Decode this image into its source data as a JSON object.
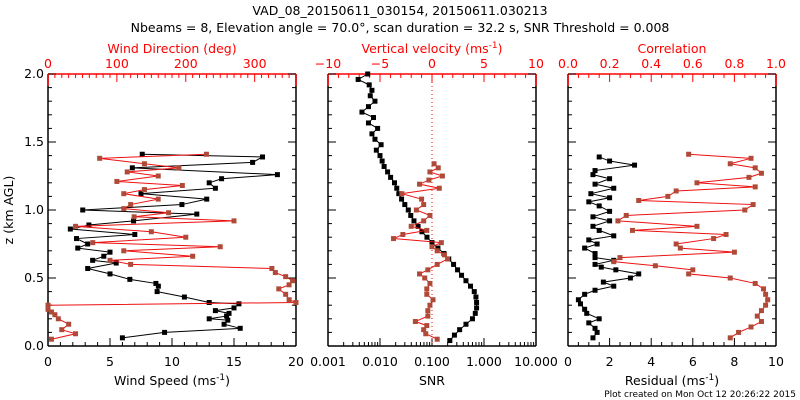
{
  "header": {
    "title_line1": "VAD_08_20150611_030154, 20150611.030213",
    "title_line2": "Nbeams = 8, Elevation angle = 70.0°, scan duration = 32.2 s, SNR Threshold = 0.008"
  },
  "footer": {
    "created": "Plot created on Mon Oct 12 20:26:22 2015"
  },
  "colors": {
    "primary_series": "#000000",
    "secondary_series": "#ee1111",
    "secondary_marker": "#b04a38",
    "axis_top": "#ff0000"
  },
  "chart_data": [
    {
      "type": "line",
      "panel": "left",
      "ylabel": "z (km AGL)",
      "ylim": [
        0,
        2.0
      ],
      "yticks": [
        "0.0",
        "0.5",
        "1.0",
        "1.5",
        "2.0"
      ],
      "xlabel": "Wind Speed (ms",
      "xlabel_sup": "-1",
      "xlabel_close": ")",
      "xlim": [
        0,
        20
      ],
      "xticks": [
        "0",
        "5",
        "10",
        "15",
        "20"
      ],
      "top_xlabel": "Wind Direction (deg)",
      "top_xlim": [
        0,
        360
      ],
      "top_xticks": [
        "0",
        "100",
        "200",
        "300"
      ],
      "series": [
        {
          "name": "Wind Speed",
          "axis": "bottom",
          "z": [
            0.06,
            0.1,
            0.13,
            0.16,
            0.19,
            0.2,
            0.22,
            0.24,
            0.26,
            0.28,
            0.31,
            0.32,
            0.36,
            0.4,
            0.44,
            0.46,
            0.49,
            0.53,
            0.57,
            0.61,
            0.63,
            0.66,
            0.69,
            0.72,
            0.75,
            0.79,
            0.82,
            0.86,
            0.89,
            0.92,
            0.97,
            1.0,
            1.04,
            1.08,
            1.12,
            1.16,
            1.2,
            1.23,
            1.26,
            1.31,
            1.35,
            1.39,
            1.41
          ],
          "values": [
            6.0,
            9.4,
            15.5,
            14.2,
            14.5,
            13.0,
            14.4,
            14.6,
            13.5,
            15.0,
            15.4,
            13.0,
            11.0,
            8.8,
            8.9,
            8.7,
            6.6,
            5.0,
            3.2,
            5.5,
            3.6,
            4.5,
            5.0,
            2.4,
            3.2,
            2.3,
            7.0,
            1.8,
            3.3,
            6.9,
            12.0,
            2.8,
            10.8,
            12.8,
            7.5,
            13.5,
            13.0,
            14.0,
            18.5,
            6.8,
            16.5,
            17.3,
            7.6
          ]
        },
        {
          "name": "Wind Direction",
          "axis": "top",
          "z": [
            0.05,
            0.09,
            0.12,
            0.16,
            0.2,
            0.23,
            0.25,
            0.27,
            0.3,
            0.32,
            0.34,
            0.38,
            0.42,
            0.45,
            0.48,
            0.51,
            0.54,
            0.57,
            0.6,
            0.63,
            0.66,
            0.7,
            0.73,
            0.76,
            0.8,
            0.84,
            0.88,
            0.92,
            0.95,
            0.98,
            1.01,
            1.04,
            1.08,
            1.12,
            1.15,
            1.18,
            1.21,
            1.25,
            1.28,
            1.31,
            1.34,
            1.38,
            1.41
          ],
          "values": [
            5,
            40,
            20,
            30,
            15,
            10,
            5,
            0,
            0,
            360,
            350,
            345,
            335,
            350,
            355,
            345,
            330,
            325,
            120,
            90,
            210,
            110,
            250,
            65,
            200,
            150,
            40,
            270,
            125,
            175,
            110,
            120,
            160,
            110,
            140,
            195,
            100,
            160,
            115,
            190,
            140,
            75,
            230
          ]
        }
      ]
    },
    {
      "type": "line",
      "panel": "middle",
      "ylim": [
        0,
        2.0
      ],
      "xlabel": "SNR",
      "xscale": "log",
      "xlim": [
        0.001,
        10.0
      ],
      "xticks": [
        "0.001",
        "0.010",
        "0.100",
        "1.000",
        "10.000"
      ],
      "top_xlabel": "Vertical velocity (ms",
      "top_xlabel_sup": "-1",
      "top_xlabel_close": ")",
      "top_xlim": [
        -10,
        10
      ],
      "top_xticks": [
        "-10",
        "-5",
        "0",
        "5",
        "10"
      ],
      "series": [
        {
          "name": "SNR",
          "axis": "bottom",
          "z": [
            0.04,
            0.08,
            0.12,
            0.16,
            0.2,
            0.24,
            0.28,
            0.32,
            0.36,
            0.4,
            0.44,
            0.48,
            0.52,
            0.56,
            0.6,
            0.64,
            0.68,
            0.72,
            0.76,
            0.8,
            0.84,
            0.88,
            0.92,
            0.96,
            1.0,
            1.04,
            1.08,
            1.12,
            1.16,
            1.2,
            1.24,
            1.28,
            1.32,
            1.36,
            1.4,
            1.44,
            1.48,
            1.52,
            1.56,
            1.6,
            1.64,
            1.68,
            1.72,
            1.76,
            1.8,
            1.84,
            1.88,
            1.92,
            1.96,
            2.0
          ],
          "values": [
            0.22,
            0.27,
            0.34,
            0.45,
            0.6,
            0.68,
            0.72,
            0.72,
            0.7,
            0.65,
            0.55,
            0.45,
            0.37,
            0.31,
            0.26,
            0.21,
            0.17,
            0.13,
            0.1,
            0.08,
            0.064,
            0.054,
            0.045,
            0.039,
            0.035,
            0.03,
            0.026,
            0.023,
            0.021,
            0.019,
            0.016,
            0.014,
            0.012,
            0.011,
            0.01,
            0.0085,
            0.0105,
            0.008,
            0.007,
            0.009,
            0.006,
            0.0075,
            0.0045,
            0.006,
            0.008,
            0.0065,
            0.007,
            0.0062,
            0.0038,
            0.0058
          ]
        },
        {
          "name": "Vertical velocity",
          "axis": "top",
          "z": [
            0.05,
            0.09,
            0.12,
            0.15,
            0.18,
            0.22,
            0.26,
            0.3,
            0.34,
            0.38,
            0.42,
            0.46,
            0.5,
            0.53,
            0.56,
            0.6,
            0.64,
            0.67,
            0.7,
            0.73,
            0.76,
            0.79,
            0.82,
            0.85,
            0.88,
            0.92,
            0.96,
            1.0,
            1.04,
            1.08,
            1.12,
            1.16,
            1.19,
            1.22,
            1.25,
            1.28,
            1.31,
            1.34
          ],
          "values": [
            0.5,
            -0.6,
            -0.8,
            -0.5,
            -1.6,
            -0.4,
            -0.4,
            -0.2,
            0.1,
            -0.5,
            -0.5,
            -0.2,
            -0.7,
            -1.2,
            -0.4,
            0.5,
            1.5,
            1.2,
            0.5,
            0.0,
            0.9,
            -3.7,
            -2.8,
            -0.5,
            -2.0,
            -0.8,
            -0.2,
            -1.5,
            -0.8,
            -1.0,
            -2.9,
            0.7,
            -1.2,
            -0.3,
            1.0,
            -0.2,
            0.6,
            0.2
          ]
        }
      ],
      "reference_line": {
        "axis": "top",
        "value": 0
      }
    },
    {
      "type": "line",
      "panel": "right",
      "ylim": [
        0,
        2.0
      ],
      "xlabel": "Residual (ms",
      "xlabel_sup": "-1",
      "xlabel_close": ")",
      "xlim": [
        0,
        10
      ],
      "xticks": [
        "0",
        "2",
        "4",
        "6",
        "8",
        "10"
      ],
      "top_xlabel": "Correlation",
      "top_xlim": [
        0.0,
        1.0
      ],
      "top_xticks": [
        "0.0",
        "0.2",
        "0.4",
        "0.6",
        "0.8",
        "1.0"
      ],
      "series": [
        {
          "name": "Residual",
          "axis": "bottom",
          "z": [
            0.06,
            0.1,
            0.13,
            0.17,
            0.2,
            0.24,
            0.27,
            0.31,
            0.34,
            0.38,
            0.41,
            0.44,
            0.47,
            0.5,
            0.53,
            0.56,
            0.58,
            0.6,
            0.63,
            0.65,
            0.68,
            0.72,
            0.75,
            0.78,
            0.81,
            0.85,
            0.88,
            0.92,
            0.95,
            0.99,
            1.03,
            1.06,
            1.09,
            1.12,
            1.16,
            1.19,
            1.23,
            1.26,
            1.29,
            1.33,
            1.36,
            1.39
          ],
          "values": [
            1.2,
            1.4,
            1.3,
            1.0,
            1.5,
            0.9,
            0.8,
            0.6,
            0.5,
            0.8,
            1.3,
            2.2,
            1.7,
            3.0,
            3.4,
            2.3,
            1.6,
            1.3,
            2.2,
            1.3,
            1.3,
            0.8,
            1.4,
            1.0,
            2.2,
            1.5,
            1.2,
            2.0,
            1.2,
            2.0,
            1.5,
            1.0,
            2.0,
            1.1,
            2.2,
            1.3,
            2.0,
            1.2,
            1.3,
            3.2,
            2.0,
            1.5
          ]
        },
        {
          "name": "Correlation",
          "axis": "top",
          "z": [
            0.06,
            0.1,
            0.14,
            0.18,
            0.22,
            0.26,
            0.3,
            0.34,
            0.38,
            0.42,
            0.46,
            0.5,
            0.53,
            0.56,
            0.59,
            0.62,
            0.65,
            0.69,
            0.72,
            0.75,
            0.79,
            0.82,
            0.85,
            0.88,
            0.92,
            0.96,
            1.0,
            1.04,
            1.07,
            1.1,
            1.14,
            1.17,
            1.2,
            1.24,
            1.27,
            1.31,
            1.34,
            1.38,
            1.41
          ],
          "values": [
            0.78,
            0.82,
            0.88,
            0.93,
            0.91,
            0.93,
            0.95,
            0.96,
            0.95,
            0.94,
            0.9,
            0.78,
            0.58,
            0.6,
            0.42,
            0.22,
            0.25,
            0.8,
            0.54,
            0.52,
            0.7,
            0.76,
            0.31,
            0.62,
            0.24,
            0.28,
            0.85,
            0.89,
            0.34,
            0.48,
            0.52,
            0.9,
            0.62,
            0.87,
            0.93,
            0.9,
            0.78,
            0.88,
            0.58
          ]
        }
      ]
    }
  ]
}
